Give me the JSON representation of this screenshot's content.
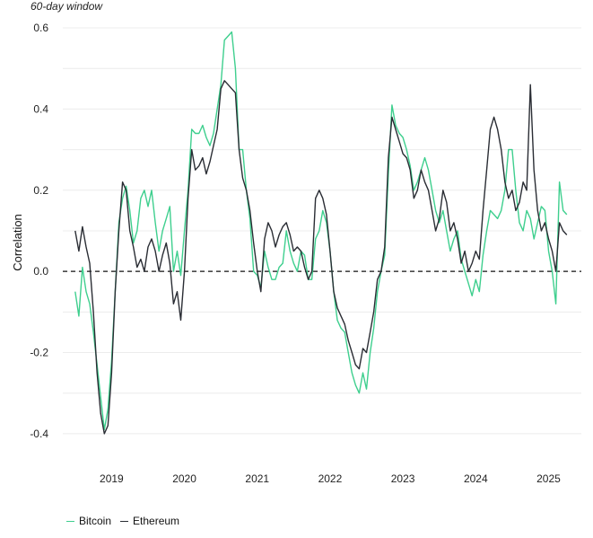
{
  "colors": {
    "bitcoin": "#3ecf8e",
    "ethereum": "#2a2d34",
    "grid": "#ececec",
    "zero_line": "#111111"
  },
  "chart_data": {
    "type": "line",
    "title": "",
    "subtitle": "60-day window",
    "xlabel": "",
    "ylabel": "Correlation",
    "xlim": [
      2018.33,
      2025.45
    ],
    "ylim": [
      -0.46,
      0.62
    ],
    "yticks": [
      -0.4,
      -0.2,
      0.0,
      0.2,
      0.4,
      0.6
    ],
    "ytick_labels": [
      "-0.4",
      "-0.2",
      "0.0",
      "0.2",
      "0.4",
      "0.6"
    ],
    "xticks": [
      2019,
      2020,
      2021,
      2022,
      2023,
      2024,
      2025
    ],
    "xtick_labels": [
      "2019",
      "2020",
      "2021",
      "2022",
      "2023",
      "2024",
      "2025"
    ],
    "grid": true,
    "reference_line": {
      "y": 0.0,
      "style": "dashed"
    },
    "legend_position": "bottom-left",
    "series": [
      {
        "name": "Bitcoin",
        "color": "#3ecf8e",
        "x": [
          2018.5,
          2018.55,
          2018.6,
          2018.65,
          2018.7,
          2018.75,
          2018.8,
          2018.85,
          2018.9,
          2018.95,
          2019.0,
          2019.05,
          2019.1,
          2019.15,
          2019.2,
          2019.25,
          2019.3,
          2019.35,
          2019.4,
          2019.45,
          2019.5,
          2019.55,
          2019.6,
          2019.65,
          2019.7,
          2019.75,
          2019.8,
          2019.85,
          2019.9,
          2019.95,
          2020.0,
          2020.05,
          2020.1,
          2020.15,
          2020.2,
          2020.25,
          2020.3,
          2020.35,
          2020.4,
          2020.45,
          2020.5,
          2020.55,
          2020.6,
          2020.65,
          2020.7,
          2020.75,
          2020.8,
          2020.85,
          2020.9,
          2020.95,
          2021.0,
          2021.05,
          2021.1,
          2021.15,
          2021.2,
          2021.25,
          2021.3,
          2021.35,
          2021.4,
          2021.45,
          2021.5,
          2021.55,
          2021.6,
          2021.65,
          2021.7,
          2021.75,
          2021.8,
          2021.85,
          2021.9,
          2021.95,
          2022.0,
          2022.05,
          2022.1,
          2022.15,
          2022.2,
          2022.25,
          2022.3,
          2022.35,
          2022.4,
          2022.45,
          2022.5,
          2022.55,
          2022.6,
          2022.65,
          2022.7,
          2022.75,
          2022.8,
          2022.85,
          2022.9,
          2022.95,
          2023.0,
          2023.05,
          2023.1,
          2023.15,
          2023.2,
          2023.25,
          2023.3,
          2023.35,
          2023.4,
          2023.45,
          2023.5,
          2023.55,
          2023.6,
          2023.65,
          2023.7,
          2023.75,
          2023.8,
          2023.85,
          2023.9,
          2023.95,
          2024.0,
          2024.05,
          2024.1,
          2024.15,
          2024.2,
          2024.25,
          2024.3,
          2024.35,
          2024.4,
          2024.45,
          2024.5,
          2024.55,
          2024.6,
          2024.65,
          2024.7,
          2024.75,
          2024.8,
          2024.85,
          2024.9,
          2024.95,
          2025.0,
          2025.05,
          2025.1,
          2025.15,
          2025.2,
          2025.25
        ],
        "y": [
          -0.05,
          -0.11,
          0.01,
          -0.05,
          -0.08,
          -0.15,
          -0.23,
          -0.31,
          -0.39,
          -0.34,
          -0.22,
          -0.05,
          0.12,
          0.18,
          0.21,
          0.15,
          0.07,
          0.1,
          0.18,
          0.2,
          0.16,
          0.2,
          0.12,
          0.05,
          0.1,
          0.13,
          0.16,
          0.0,
          0.05,
          -0.01,
          0.1,
          0.2,
          0.35,
          0.34,
          0.34,
          0.36,
          0.33,
          0.31,
          0.34,
          0.4,
          0.46,
          0.57,
          0.58,
          0.59,
          0.5,
          0.3,
          0.3,
          0.2,
          0.13,
          0.0,
          -0.01,
          -0.04,
          0.05,
          0.01,
          -0.02,
          -0.02,
          0.01,
          0.02,
          0.1,
          0.05,
          0.02,
          0.0,
          0.05,
          0.04,
          -0.02,
          -0.02,
          0.08,
          0.1,
          0.15,
          0.12,
          0.05,
          -0.05,
          -0.12,
          -0.14,
          -0.15,
          -0.2,
          -0.25,
          -0.28,
          -0.3,
          -0.25,
          -0.29,
          -0.2,
          -0.14,
          -0.05,
          0.0,
          0.04,
          0.24,
          0.41,
          0.36,
          0.34,
          0.33,
          0.3,
          0.26,
          0.2,
          0.22,
          0.25,
          0.28,
          0.25,
          0.2,
          0.15,
          0.12,
          0.15,
          0.1,
          0.05,
          0.08,
          0.1,
          0.03,
          0.0,
          -0.03,
          -0.06,
          -0.02,
          -0.05,
          0.04,
          0.1,
          0.15,
          0.14,
          0.13,
          0.15,
          0.2,
          0.3,
          0.3,
          0.2,
          0.12,
          0.1,
          0.15,
          0.13,
          0.08,
          0.12,
          0.16,
          0.15,
          0.05,
          0.0,
          -0.08,
          0.22,
          0.15,
          0.14
        ]
      },
      {
        "name": "Ethereum",
        "color": "#2a2d34",
        "x": [
          2018.5,
          2018.55,
          2018.6,
          2018.65,
          2018.7,
          2018.75,
          2018.8,
          2018.85,
          2018.9,
          2018.95,
          2019.0,
          2019.05,
          2019.1,
          2019.15,
          2019.2,
          2019.25,
          2019.3,
          2019.35,
          2019.4,
          2019.45,
          2019.5,
          2019.55,
          2019.6,
          2019.65,
          2019.7,
          2019.75,
          2019.8,
          2019.85,
          2019.9,
          2019.95,
          2020.0,
          2020.05,
          2020.1,
          2020.15,
          2020.2,
          2020.25,
          2020.3,
          2020.35,
          2020.4,
          2020.45,
          2020.5,
          2020.55,
          2020.6,
          2020.65,
          2020.7,
          2020.75,
          2020.8,
          2020.85,
          2020.9,
          2020.95,
          2021.0,
          2021.05,
          2021.1,
          2021.15,
          2021.2,
          2021.25,
          2021.3,
          2021.35,
          2021.4,
          2021.45,
          2021.5,
          2021.55,
          2021.6,
          2021.65,
          2021.7,
          2021.75,
          2021.8,
          2021.85,
          2021.9,
          2021.95,
          2022.0,
          2022.05,
          2022.1,
          2022.15,
          2022.2,
          2022.25,
          2022.3,
          2022.35,
          2022.4,
          2022.45,
          2022.5,
          2022.55,
          2022.6,
          2022.65,
          2022.7,
          2022.75,
          2022.8,
          2022.85,
          2022.9,
          2022.95,
          2023.0,
          2023.05,
          2023.1,
          2023.15,
          2023.2,
          2023.25,
          2023.3,
          2023.35,
          2023.4,
          2023.45,
          2023.5,
          2023.55,
          2023.6,
          2023.65,
          2023.7,
          2023.75,
          2023.8,
          2023.85,
          2023.9,
          2023.95,
          2024.0,
          2024.05,
          2024.1,
          2024.15,
          2024.2,
          2024.25,
          2024.3,
          2024.35,
          2024.4,
          2024.45,
          2024.5,
          2024.55,
          2024.6,
          2024.65,
          2024.7,
          2024.75,
          2024.8,
          2024.85,
          2024.9,
          2024.95,
          2025.0,
          2025.05,
          2025.1,
          2025.15,
          2025.2,
          2025.25
        ],
        "y": [
          0.1,
          0.05,
          0.11,
          0.06,
          0.02,
          -0.1,
          -0.25,
          -0.35,
          -0.4,
          -0.38,
          -0.25,
          -0.05,
          0.1,
          0.22,
          0.2,
          0.1,
          0.06,
          0.01,
          0.03,
          0.0,
          0.06,
          0.08,
          0.05,
          0.0,
          0.04,
          0.07,
          0.02,
          -0.08,
          -0.05,
          -0.12,
          0.0,
          0.18,
          0.3,
          0.25,
          0.26,
          0.28,
          0.24,
          0.27,
          0.31,
          0.35,
          0.45,
          0.47,
          0.46,
          0.45,
          0.44,
          0.3,
          0.23,
          0.2,
          0.15,
          0.07,
          0.0,
          -0.05,
          0.08,
          0.12,
          0.1,
          0.06,
          0.09,
          0.11,
          0.12,
          0.09,
          0.05,
          0.06,
          0.05,
          0.01,
          -0.02,
          0.0,
          0.18,
          0.2,
          0.18,
          0.14,
          0.05,
          -0.05,
          -0.09,
          -0.11,
          -0.13,
          -0.17,
          -0.2,
          -0.23,
          -0.24,
          -0.19,
          -0.2,
          -0.15,
          -0.1,
          -0.02,
          0.0,
          0.06,
          0.28,
          0.38,
          0.35,
          0.32,
          0.29,
          0.28,
          0.25,
          0.18,
          0.2,
          0.25,
          0.22,
          0.2,
          0.15,
          0.1,
          0.13,
          0.2,
          0.17,
          0.1,
          0.12,
          0.08,
          0.02,
          0.05,
          0.0,
          0.02,
          0.05,
          0.03,
          0.15,
          0.25,
          0.35,
          0.38,
          0.35,
          0.3,
          0.22,
          0.18,
          0.2,
          0.15,
          0.17,
          0.22,
          0.2,
          0.46,
          0.25,
          0.15,
          0.1,
          0.12,
          0.08,
          0.05,
          0.0,
          0.12,
          0.1,
          0.09
        ]
      }
    ]
  }
}
